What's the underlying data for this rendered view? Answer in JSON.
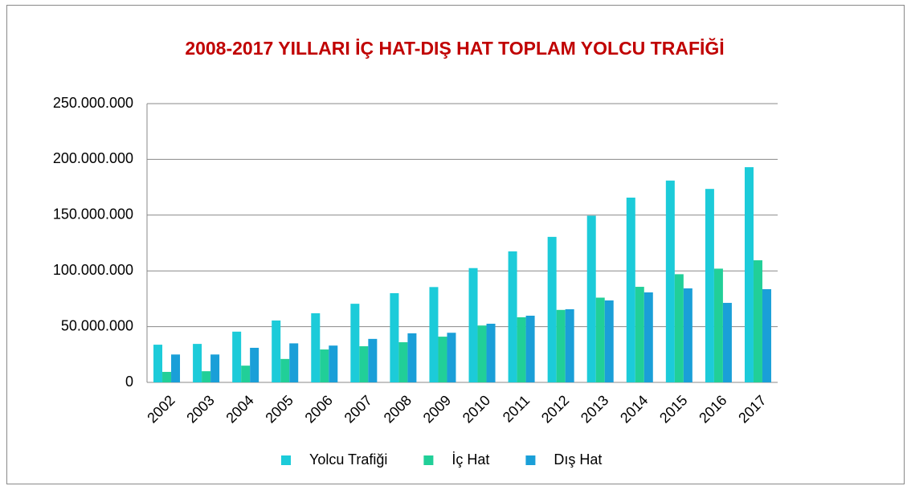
{
  "chart_data": {
    "type": "bar",
    "title": "2008-2017 YILLARI İÇ HAT-DIŞ  HAT TOPLAM YOLCU TRAFİĞİ",
    "categories": [
      "2002",
      "2003",
      "2004",
      "2005",
      "2006",
      "2007",
      "2008",
      "2009",
      "2010",
      "2011",
      "2012",
      "2013",
      "2014",
      "2015",
      "2016",
      "2017"
    ],
    "series": [
      {
        "name": "Yolcu Trafiği",
        "color": "#1ccbd9",
        "values": [
          33800000,
          34500000,
          45500000,
          55500000,
          62000000,
          70500000,
          80000000,
          85500000,
          102500000,
          117500000,
          130500000,
          149500000,
          165700000,
          181000000,
          173500000,
          193000000
        ]
      },
      {
        "name": "İç Hat",
        "color": "#21cf98",
        "values": [
          9400000,
          10000000,
          15000000,
          21000000,
          29500000,
          32400000,
          36000000,
          41000000,
          51000000,
          58400000,
          65000000,
          76000000,
          85700000,
          97000000,
          102000000,
          109500000
        ]
      },
      {
        "name": "Dış Hat",
        "color": "#1a9fd8",
        "values": [
          25000000,
          25000000,
          31000000,
          35000000,
          33000000,
          39000000,
          44000000,
          44500000,
          52600000,
          59800000,
          65600000,
          73500000,
          80700000,
          84300000,
          71300000,
          83600000
        ]
      }
    ],
    "ylim": [
      0,
      250000000
    ],
    "yticks": [
      0,
      {
        "value": 50000000,
        "label": "50.000.000"
      },
      {
        "value": 100000000,
        "label": "100.000.000"
      },
      {
        "value": 150000000,
        "label": "150.000.000"
      },
      {
        "value": 200000000,
        "label": "200.000.000"
      },
      {
        "value": 250000000,
        "label": "250.000.000"
      }
    ],
    "grid": true,
    "legend": "bottom"
  }
}
